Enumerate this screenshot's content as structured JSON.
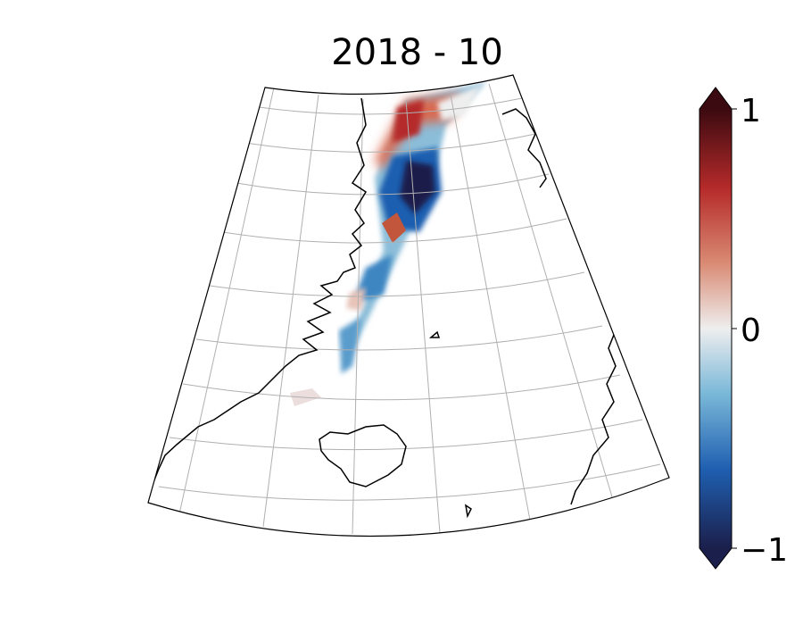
{
  "title": "2018 - 10",
  "colorbar": {
    "ticks": [
      {
        "value": 1,
        "label": "1"
      },
      {
        "value": 0,
        "label": "0"
      },
      {
        "value": -1,
        "label": "−1"
      }
    ],
    "range": [
      -1,
      1
    ],
    "colormap": "diverging blue-white-red",
    "colors": {
      "min": "#1b1f4b",
      "low": "#1f5fb0",
      "mid_low": "#79b7d8",
      "zero": "#eeeeee",
      "mid_high": "#d98a73",
      "high": "#b52a2a",
      "max": "#3b0a10"
    }
  },
  "map": {
    "projection": "conic",
    "region": "Greenland Sea / Iceland / Norway",
    "graticule": true,
    "gridline_color": "#b0b0b0",
    "coastline_color": "#000000",
    "anomaly_field": "narrow track of anomalies from the north edge toward the Greenland coast"
  }
}
